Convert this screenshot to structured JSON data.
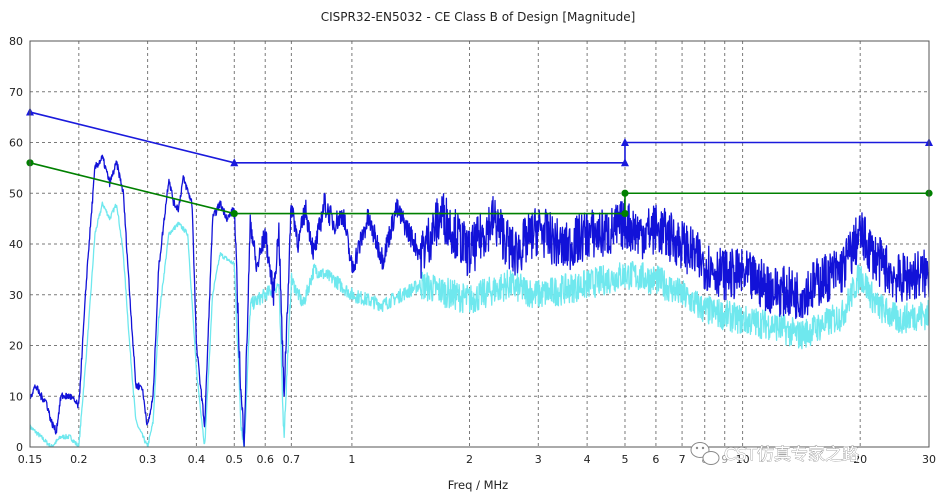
{
  "watermark": "CST仿真专家之路",
  "chart_data": {
    "type": "line",
    "title": "CISPR32-EN5032 - CE Class B of Design [Magnitude]",
    "xlabel": "Freq / MHz",
    "ylabel": "",
    "xscale": "log",
    "xlim": [
      0.15,
      30
    ],
    "ylim": [
      0,
      80
    ],
    "grid": true,
    "legend": "none",
    "x_ticks": [
      "0.15",
      "0.2",
      "0.3",
      "0.4",
      "0.5",
      "0.6",
      "0.7",
      "1",
      "2",
      "3",
      "4",
      "5",
      "6",
      "7",
      "8",
      "9",
      "10",
      "20",
      "30"
    ],
    "x_ticks_minor": [
      "8",
      "9"
    ],
    "y_ticks": [
      "0",
      "10",
      "20",
      "30",
      "40",
      "50",
      "60",
      "70",
      "80"
    ],
    "series": [
      {
        "role": "quasi-peak-limit",
        "color": "#1a1adc",
        "marker": "triangle",
        "points": [
          [
            0.15,
            66
          ],
          [
            0.5,
            56
          ],
          [
            5,
            56
          ],
          [
            5,
            60
          ],
          [
            30,
            60
          ]
        ]
      },
      {
        "role": "average-limit",
        "color": "#008000",
        "marker": "circle",
        "points": [
          [
            0.15,
            56
          ],
          [
            0.5,
            46
          ],
          [
            5,
            46
          ],
          [
            5,
            50
          ],
          [
            30,
            50
          ]
        ]
      },
      {
        "role": "peak-emission",
        "color": "#1212d8",
        "points": [
          [
            0.15,
            10
          ],
          [
            0.155,
            12
          ],
          [
            0.16,
            10
          ],
          [
            0.165,
            9
          ],
          [
            0.17,
            5
          ],
          [
            0.175,
            3
          ],
          [
            0.18,
            10
          ],
          [
            0.19,
            10
          ],
          [
            0.2,
            8
          ],
          [
            0.21,
            35
          ],
          [
            0.22,
            55
          ],
          [
            0.23,
            57
          ],
          [
            0.24,
            52
          ],
          [
            0.25,
            56
          ],
          [
            0.26,
            50
          ],
          [
            0.27,
            30
          ],
          [
            0.28,
            12
          ],
          [
            0.29,
            12
          ],
          [
            0.3,
            4
          ],
          [
            0.31,
            10
          ],
          [
            0.32,
            35
          ],
          [
            0.34,
            53
          ],
          [
            0.35,
            48
          ],
          [
            0.36,
            47
          ],
          [
            0.37,
            53
          ],
          [
            0.39,
            48
          ],
          [
            0.4,
            20
          ],
          [
            0.42,
            4
          ],
          [
            0.44,
            45
          ],
          [
            0.46,
            48
          ],
          [
            0.48,
            45
          ],
          [
            0.5,
            47
          ],
          [
            0.52,
            10
          ],
          [
            0.53,
            2
          ],
          [
            0.55,
            45
          ],
          [
            0.57,
            35
          ],
          [
            0.6,
            42
          ],
          [
            0.63,
            30
          ],
          [
            0.65,
            43
          ],
          [
            0.67,
            10
          ],
          [
            0.7,
            48
          ],
          [
            0.73,
            40
          ],
          [
            0.76,
            47
          ],
          [
            0.8,
            38
          ],
          [
            0.85,
            48
          ],
          [
            0.9,
            44
          ],
          [
            0.95,
            46
          ],
          [
            1.0,
            35
          ],
          [
            1.1,
            45
          ],
          [
            1.2,
            37
          ],
          [
            1.3,
            47
          ],
          [
            1.5,
            38
          ],
          [
            1.7,
            46
          ],
          [
            2.0,
            38
          ],
          [
            2.3,
            45
          ],
          [
            2.6,
            38
          ],
          [
            3.0,
            43
          ],
          [
            3.5,
            39
          ],
          [
            4.0,
            42
          ],
          [
            4.5,
            42
          ],
          [
            5.0,
            44
          ],
          [
            5.5,
            42
          ],
          [
            6.0,
            43
          ],
          [
            7.0,
            40
          ],
          [
            8.0,
            36
          ],
          [
            9.0,
            34
          ],
          [
            10.0,
            34
          ],
          [
            12.0,
            31
          ],
          [
            14.0,
            30
          ],
          [
            16.0,
            33
          ],
          [
            18.0,
            35
          ],
          [
            20.0,
            42
          ],
          [
            22.0,
            37
          ],
          [
            25.0,
            33
          ],
          [
            28.0,
            34
          ],
          [
            30.0,
            34
          ]
        ]
      },
      {
        "role": "average-emission",
        "color": "#6fe8ee",
        "points": [
          [
            0.15,
            4
          ],
          [
            0.16,
            2
          ],
          [
            0.17,
            0
          ],
          [
            0.18,
            2
          ],
          [
            0.19,
            2
          ],
          [
            0.2,
            0
          ],
          [
            0.21,
            20
          ],
          [
            0.22,
            42
          ],
          [
            0.23,
            48
          ],
          [
            0.24,
            45
          ],
          [
            0.25,
            48
          ],
          [
            0.26,
            38
          ],
          [
            0.27,
            20
          ],
          [
            0.28,
            5
          ],
          [
            0.3,
            0
          ],
          [
            0.31,
            5
          ],
          [
            0.32,
            25
          ],
          [
            0.34,
            42
          ],
          [
            0.36,
            44
          ],
          [
            0.38,
            42
          ],
          [
            0.4,
            15
          ],
          [
            0.42,
            0
          ],
          [
            0.44,
            30
          ],
          [
            0.46,
            38
          ],
          [
            0.5,
            36
          ],
          [
            0.52,
            5
          ],
          [
            0.53,
            0
          ],
          [
            0.55,
            28
          ],
          [
            0.6,
            30
          ],
          [
            0.65,
            32
          ],
          [
            0.67,
            2
          ],
          [
            0.7,
            33
          ],
          [
            0.75,
            28
          ],
          [
            0.8,
            35
          ],
          [
            0.9,
            33
          ],
          [
            1.0,
            30
          ],
          [
            1.2,
            28
          ],
          [
            1.5,
            32
          ],
          [
            2.0,
            29
          ],
          [
            2.5,
            32
          ],
          [
            3.0,
            30
          ],
          [
            4.0,
            32
          ],
          [
            5.0,
            34
          ],
          [
            6.0,
            33
          ],
          [
            7.0,
            30
          ],
          [
            8.0,
            27
          ],
          [
            9.0,
            26
          ],
          [
            10.0,
            25
          ],
          [
            12.0,
            24
          ],
          [
            14.0,
            22
          ],
          [
            16.0,
            24
          ],
          [
            18.0,
            26
          ],
          [
            20.0,
            34
          ],
          [
            22.0,
            28
          ],
          [
            25.0,
            25
          ],
          [
            28.0,
            26
          ],
          [
            30.0,
            26
          ]
        ]
      }
    ]
  }
}
